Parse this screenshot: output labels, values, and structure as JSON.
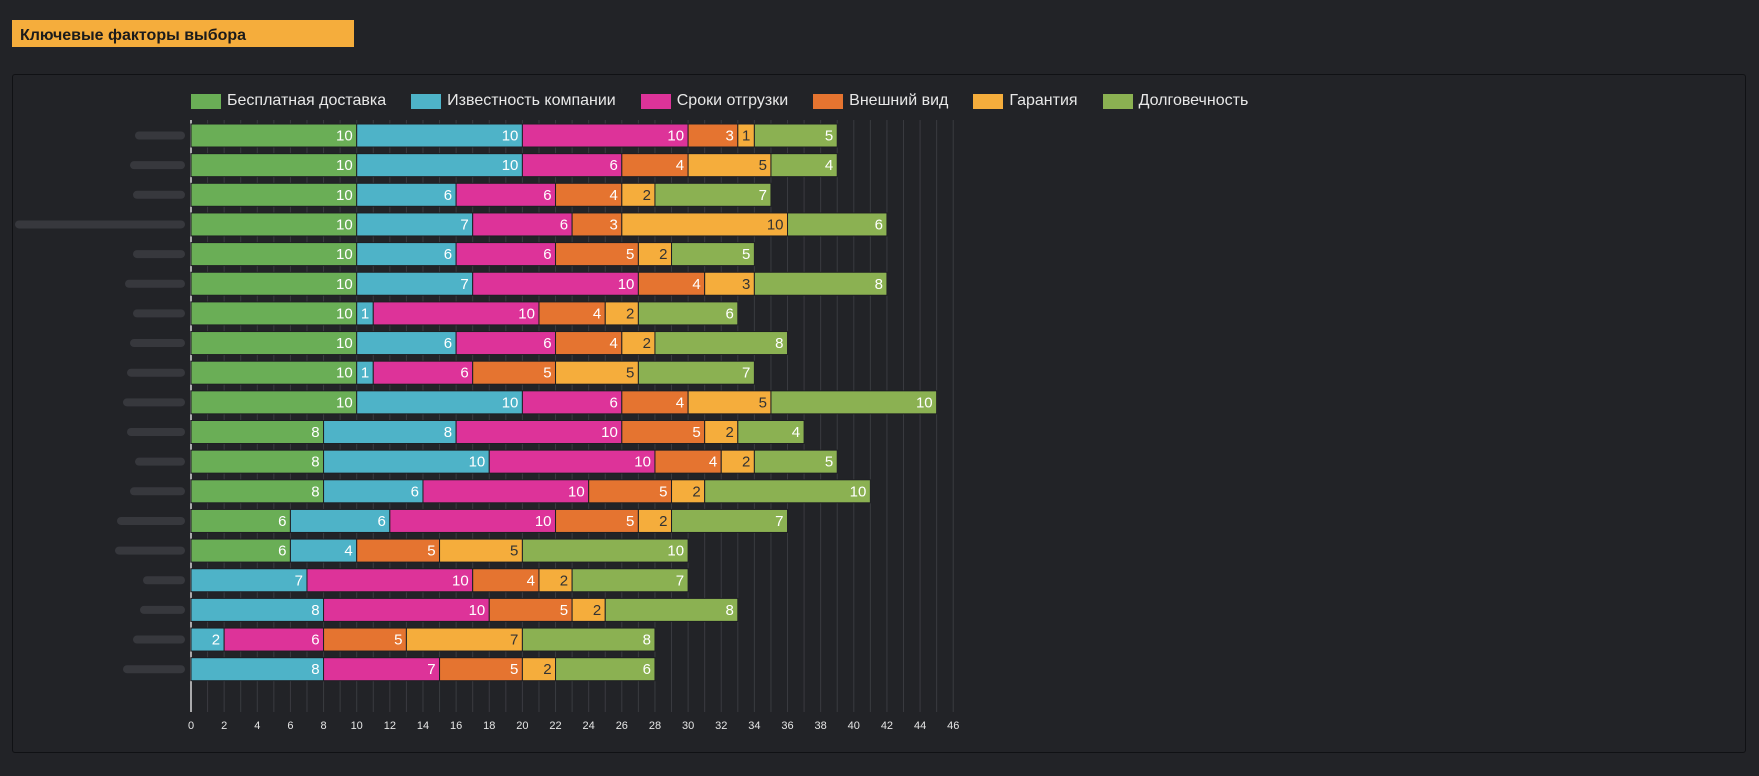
{
  "header": {
    "title": "Ключевые факторы выбора"
  },
  "colors": {
    "background": "#222327",
    "grid": "#3a3b40",
    "axis_text": "#e6e6e6"
  },
  "chart_data": {
    "type": "bar",
    "orientation": "horizontal",
    "stacked": true,
    "title": "Ключевые факторы выбора",
    "xlim": [
      0,
      46
    ],
    "x_ticks": [
      0,
      2,
      4,
      6,
      8,
      10,
      12,
      14,
      16,
      18,
      20,
      22,
      24,
      26,
      28,
      30,
      32,
      34,
      36,
      38,
      40,
      42,
      44,
      46
    ],
    "grid": true,
    "legend_position": "top-left",
    "category_labels_blurred": true,
    "categories": [
      "",
      "",
      "",
      "",
      "",
      "",
      "",
      "",
      "",
      "",
      "",
      "",
      "",
      "",
      "",
      "",
      "",
      "",
      ""
    ],
    "series": [
      {
        "name": "Бесплатная доставка",
        "color": "#6aae56",
        "label_color": "#ffffff",
        "values": [
          10,
          10,
          10,
          10,
          10,
          10,
          10,
          10,
          10,
          10,
          8,
          8,
          8,
          6,
          6,
          0,
          0,
          0,
          0
        ]
      },
      {
        "name": "Известность компании",
        "color": "#4eb3c8",
        "label_color": "#ffffff",
        "values": [
          10,
          10,
          6,
          7,
          6,
          7,
          1,
          6,
          1,
          10,
          8,
          10,
          6,
          6,
          4,
          7,
          8,
          2,
          8
        ]
      },
      {
        "name": "Сроки отгрузки",
        "color": "#dd3399",
        "label_color": "#ffffff",
        "values": [
          10,
          6,
          6,
          6,
          6,
          10,
          10,
          6,
          6,
          6,
          10,
          10,
          10,
          10,
          0,
          10,
          10,
          6,
          7
        ]
      },
      {
        "name": "Внешний вид",
        "color": "#e57430",
        "label_color": "#ffffff",
        "values": [
          3,
          4,
          4,
          3,
          5,
          4,
          4,
          4,
          5,
          4,
          5,
          4,
          5,
          5,
          5,
          4,
          5,
          5,
          5
        ]
      },
      {
        "name": "Гарантия",
        "color": "#f5ad3c",
        "label_color": "#333333",
        "values": [
          1,
          5,
          2,
          10,
          2,
          3,
          2,
          2,
          5,
          5,
          2,
          2,
          2,
          2,
          5,
          2,
          2,
          7,
          2
        ]
      },
      {
        "name": "Долговечность",
        "color": "#8bb152",
        "label_color": "#ffffff",
        "values": [
          5,
          4,
          7,
          6,
          5,
          8,
          6,
          8,
          7,
          10,
          4,
          5,
          10,
          7,
          10,
          7,
          8,
          8,
          6
        ]
      }
    ]
  }
}
